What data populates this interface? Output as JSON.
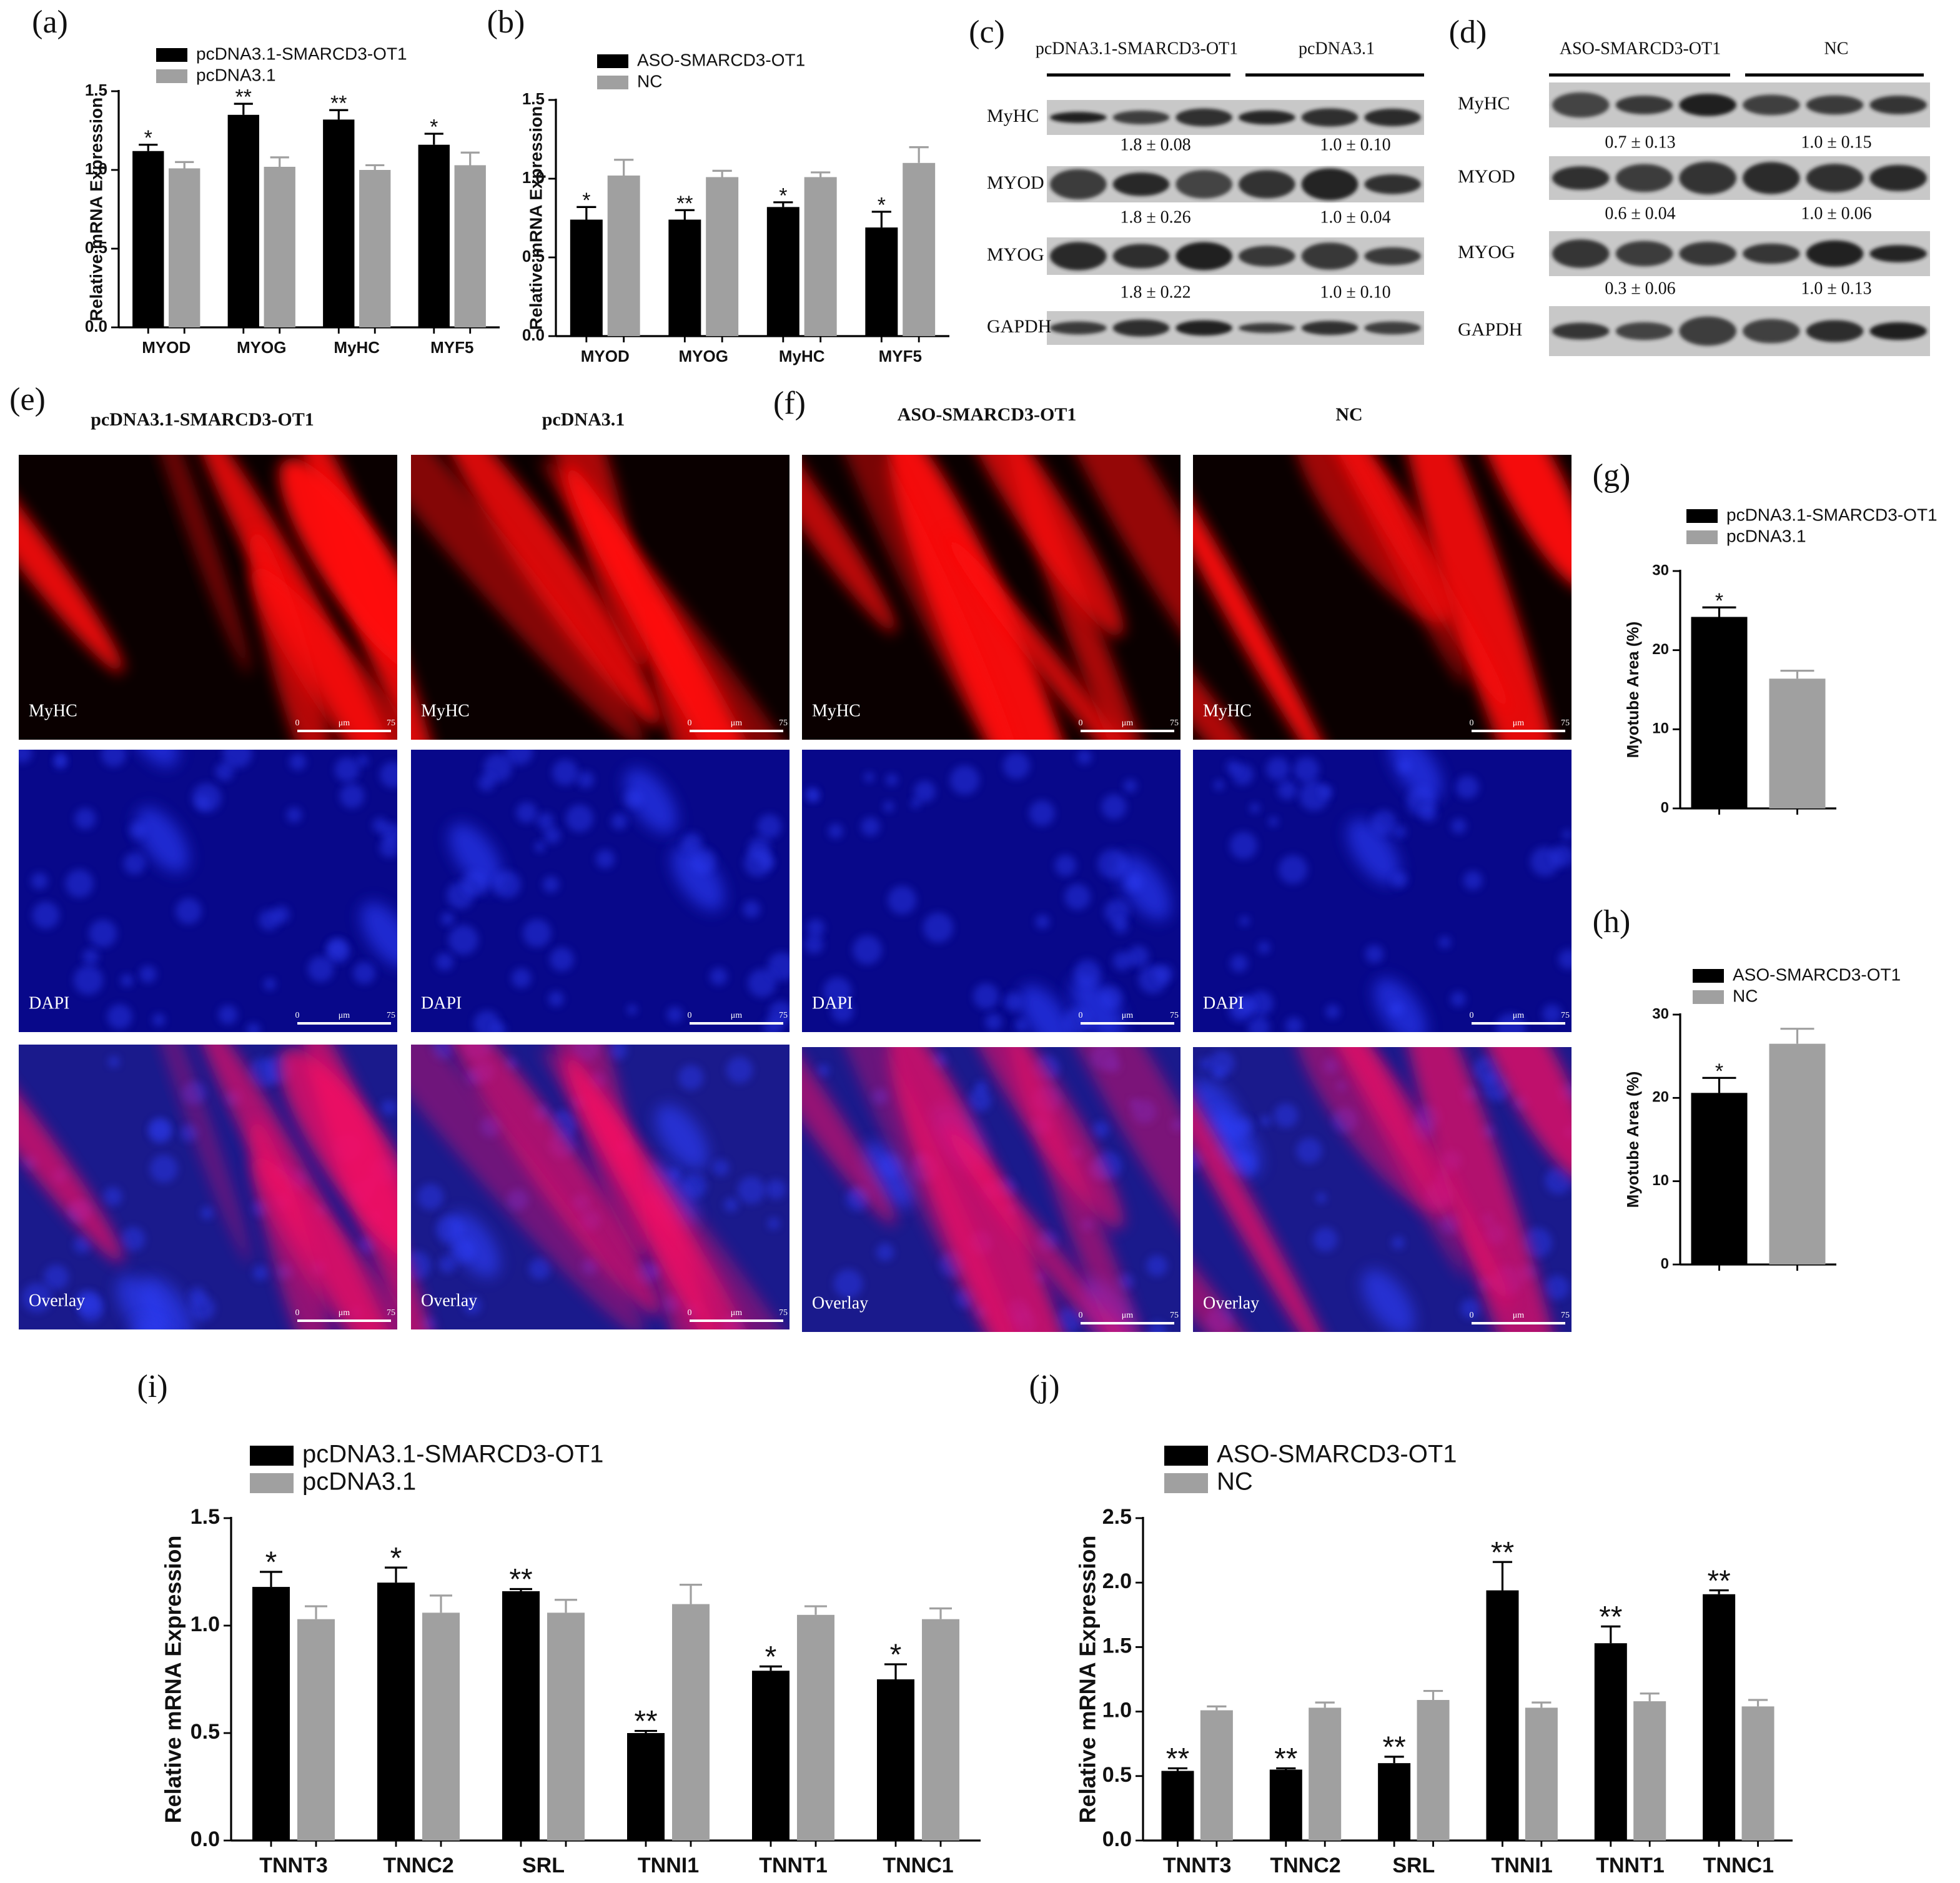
{
  "chart_data": [
    {
      "type": "bar",
      "panel": "(a)",
      "ylabel": "Relative mRNA Expression",
      "categories": [
        "MYOD",
        "MYOG",
        "MyHC",
        "MYF5"
      ],
      "series": [
        {
          "name": "pcDNA3.1-SMARCD3-OT1",
          "color": "#000000",
          "values": [
            1.12,
            1.35,
            1.32,
            1.16
          ],
          "errors": [
            0.04,
            0.07,
            0.06,
            0.07
          ],
          "annotations": [
            "*",
            "**",
            "**",
            "*"
          ]
        },
        {
          "name": "pcDNA3.1",
          "color": "#a0a0a0",
          "values": [
            1.01,
            1.02,
            1.0,
            1.03
          ],
          "errors": [
            0.04,
            0.06,
            0.03,
            0.08
          ]
        }
      ],
      "ylim": [
        0,
        1.5
      ],
      "yticks": [
        {
          "value": 0,
          "label": "0.0"
        },
        0.5,
        {
          "value": 1,
          "label": "1.0"
        },
        1.5
      ]
    },
    {
      "type": "bar",
      "panel": "(b)",
      "ylabel": "Relative mRNA Expression",
      "categories": [
        "MYOD",
        "MYOG",
        "MyHC",
        "MYF5"
      ],
      "series": [
        {
          "name": "ASO-SMARCD3-OT1",
          "color": "#000000",
          "values": [
            0.74,
            0.74,
            0.82,
            0.69
          ],
          "errors": [
            0.08,
            0.06,
            0.03,
            0.1
          ],
          "annotations": [
            "*",
            "**",
            "*",
            "*"
          ]
        },
        {
          "name": "NC",
          "color": "#a0a0a0",
          "values": [
            1.02,
            1.01,
            1.01,
            1.1
          ],
          "errors": [
            0.1,
            0.04,
            0.03,
            0.1
          ]
        }
      ],
      "ylim": [
        0,
        1.5
      ],
      "yticks": [
        {
          "value": 0,
          "label": "0.0"
        },
        0.5,
        {
          "value": 1,
          "label": "1.0"
        },
        1.5
      ]
    },
    {
      "type": "bar",
      "panel": "(g)",
      "ylabel": "Myotube Area (%)",
      "categories": [
        null
      ],
      "series": [
        {
          "name": "pcDNA3.1-SMARCD3-OT1",
          "color": "#000000",
          "values": [
            24.2
          ],
          "errors": [
            1.2
          ],
          "annotations": [
            "*"
          ]
        },
        {
          "name": "pcDNA3.1",
          "color": "#a0a0a0",
          "values": [
            16.4
          ],
          "errors": [
            1.0
          ]
        }
      ],
      "ylim": [
        0,
        30
      ],
      "yticks": [
        0,
        10,
        20,
        30
      ]
    },
    {
      "type": "bar",
      "panel": "(h)",
      "ylabel": "Myotube Area (%)",
      "categories": [
        null
      ],
      "series": [
        {
          "name": "ASO-SMARCD3-OT1",
          "color": "#000000",
          "values": [
            20.6
          ],
          "errors": [
            1.8
          ],
          "annotations": [
            "*"
          ]
        },
        {
          "name": "NC",
          "color": "#a0a0a0",
          "values": [
            26.5
          ],
          "errors": [
            1.8
          ]
        }
      ],
      "ylim": [
        0,
        30
      ],
      "yticks": [
        0,
        10,
        20,
        30
      ]
    },
    {
      "type": "bar",
      "panel": "(i)",
      "ylabel": "Relative mRNA Expression",
      "categories": [
        "TNNT3",
        "TNNC2",
        "SRL",
        "TNNI1",
        "TNNT1",
        "TNNC1"
      ],
      "series": [
        {
          "name": "pcDNA3.1-SMARCD3-OT1",
          "color": "#000000",
          "values": [
            1.18,
            1.2,
            1.16,
            0.5,
            0.79,
            0.75
          ],
          "errors": [
            0.07,
            0.07,
            0.01,
            0.01,
            0.02,
            0.07
          ],
          "annotations": [
            "*",
            "*",
            "**",
            "**",
            "*",
            "*"
          ]
        },
        {
          "name": "pcDNA3.1",
          "color": "#a0a0a0",
          "values": [
            1.03,
            1.06,
            1.06,
            1.1,
            1.05,
            1.03
          ],
          "errors": [
            0.06,
            0.08,
            0.06,
            0.09,
            0.04,
            0.05
          ]
        }
      ],
      "ylim": [
        0,
        1.5
      ],
      "yticks": [
        {
          "value": 0,
          "label": "0.0"
        },
        0.5,
        {
          "value": 1,
          "label": "1.0"
        },
        1.5
      ]
    },
    {
      "type": "bar",
      "panel": "(j)",
      "ylabel": "Relative mRNA Expression",
      "categories": [
        "TNNT3",
        "TNNC2",
        "SRL",
        "TNNI1",
        "TNNT1",
        "TNNC1"
      ],
      "series": [
        {
          "name": "ASO-SMARCD3-OT1",
          "color": "#000000",
          "values": [
            0.54,
            0.55,
            0.6,
            1.94,
            1.53,
            1.91
          ],
          "errors": [
            0.02,
            0.01,
            0.05,
            0.22,
            0.13,
            0.03
          ],
          "annotations": [
            "**",
            "**",
            "**",
            "**",
            "**",
            "**"
          ]
        },
        {
          "name": "NC",
          "color": "#a0a0a0",
          "values": [
            1.01,
            1.03,
            1.09,
            1.03,
            1.08,
            1.04
          ],
          "errors": [
            0.03,
            0.04,
            0.07,
            0.04,
            0.06,
            0.05
          ]
        }
      ],
      "ylim": [
        0,
        2.5
      ],
      "yticks": [
        {
          "value": 0,
          "label": "0.0"
        },
        0.5,
        {
          "value": 1,
          "label": "1.0"
        },
        1.5,
        {
          "value": 2,
          "label": "2.0"
        },
        2.5
      ]
    }
  ],
  "blots": [
    {
      "panel": "(c)",
      "groups": [
        "pcDNA3.1-SMARCD3-OT1",
        "pcDNA3.1"
      ],
      "rows": [
        "MyHC",
        "MYOD",
        "MYOG",
        "GAPDH"
      ],
      "quant": [
        [
          "1.8 ± 0.08",
          "1.0 ± 0.10"
        ],
        [
          "1.8 ± 0.26",
          "1.0 ± 0.04"
        ],
        [
          "1.8 ± 0.22",
          "1.0 ± 0.10"
        ]
      ]
    },
    {
      "panel": "(d)",
      "groups": [
        "ASO-SMARCD3-OT1",
        "NC"
      ],
      "rows": [
        "MyHC",
        "MYOD",
        "MYOG",
        "GAPDH"
      ],
      "quant": [
        [
          "0.7 ± 0.13",
          "1.0 ± 0.15"
        ],
        [
          "0.6 ± 0.04",
          "1.0 ± 0.06"
        ],
        [
          "0.3 ± 0.06",
          "1.0 ± 0.13"
        ]
      ]
    }
  ],
  "micrographs": [
    {
      "panel": "(e)",
      "columns": [
        "pcDNA3.1-SMARCD3-OT1",
        "pcDNA3.1"
      ]
    },
    {
      "panel": "(f)",
      "columns": [
        "ASO-SMARCD3-OT1",
        "NC"
      ]
    }
  ],
  "channels": [
    "MyHC",
    "DAPI",
    "Overlay"
  ],
  "scale_bar": [
    "0",
    "μm",
    "75"
  ]
}
